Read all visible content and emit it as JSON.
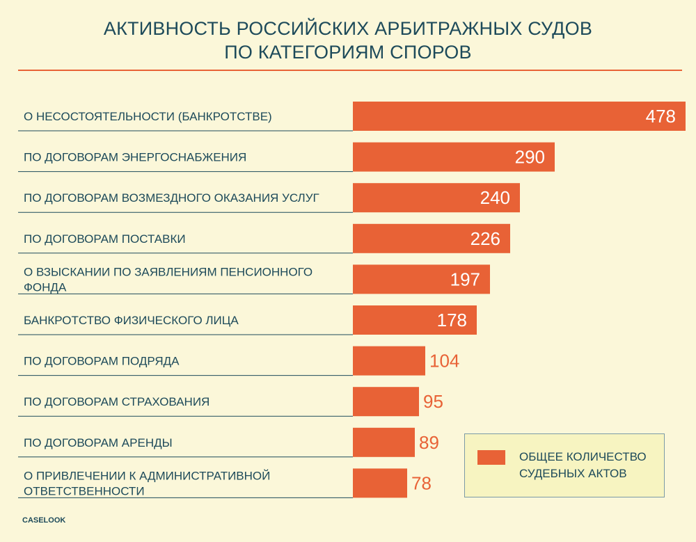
{
  "title": {
    "line1": "АКТИВНОСТЬ РОССИЙСКИХ АРБИТРАЖНЫХ СУДОВ",
    "line2": "ПО КАТЕГОРИЯМ СПОРОВ"
  },
  "source": "CASELOOK",
  "legend": {
    "line1": "ОБЩЕЕ КОЛИЧЕСТВО",
    "line2": "СУДЕБНЫХ АКТОВ"
  },
  "colors": {
    "bar": "#e86236",
    "text": "#1d4a5a",
    "inside_value": "#ffffff",
    "rule": "#e86236"
  },
  "chart_data": {
    "type": "bar",
    "orientation": "horizontal",
    "title": "АКТИВНОСТЬ РОССИЙСКИХ АРБИТРАЖНЫХ СУДОВ ПО КАТЕГОРИЯМ СПОРОВ",
    "categories": [
      [
        "О НЕСОСТОЯТЕЛЬНОСТИ (БАНКРОТСТВЕ)"
      ],
      [
        "ПО ДОГОВОРАМ ЭНЕРГОСНАБЖЕНИЯ"
      ],
      [
        "ПО ДОГОВОРАМ ВОЗМЕЗДНОГО ОКАЗАНИЯ УСЛУГ"
      ],
      [
        "ПО ДОГОВОРАМ ПОСТАВКИ"
      ],
      [
        "О ВЗЫСКАНИИ ПО ЗАЯВЛЕНИЯМ ПЕНСИОННОГО",
        "ФОНДА"
      ],
      [
        "БАНКРОТСТВО ФИЗИЧЕСКОГО ЛИЦА"
      ],
      [
        "ПО ДОГОВОРАМ ПОДРЯДА"
      ],
      [
        "ПО ДОГОВОРАМ СТРАХОВАНИЯ"
      ],
      [
        "ПО ДОГОВОРАМ АРЕНДЫ"
      ],
      [
        "О ПРИВЛЕЧЕНИИ К АДМИНИСТРАТИВНОЙ",
        "ОТВЕТСТВЕННОСТИ"
      ]
    ],
    "series": [
      {
        "name": "ОБЩЕЕ КОЛИЧЕСТВО СУДЕБНЫХ АКТОВ",
        "values": [
          478,
          290,
          240,
          226,
          197,
          178,
          104,
          95,
          89,
          78
        ]
      }
    ],
    "xlim": [
      0,
      478
    ],
    "grid": false,
    "legend_position": "bottom-right"
  }
}
